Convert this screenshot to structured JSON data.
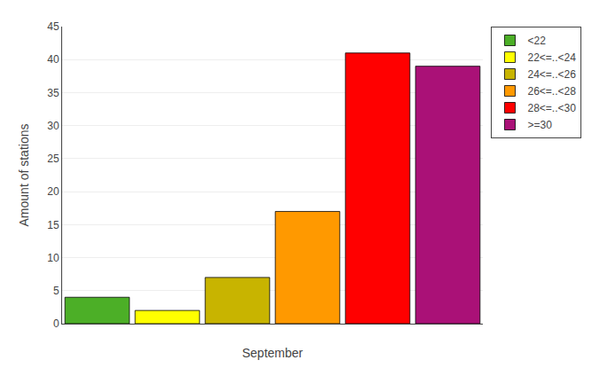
{
  "chart_data": {
    "type": "bar",
    "categories": [
      "<22",
      "22<=..<24",
      "24<=..<26",
      "26<=..<28",
      "28<=..<30",
      ">=30"
    ],
    "values": [
      4,
      2,
      7,
      17,
      41,
      39
    ],
    "colors": [
      "#4caf27",
      "#ffff00",
      "#c8b400",
      "#ff9900",
      "#ff0000",
      "#aa1177"
    ],
    "xlabel": "September",
    "ylabel": "Amount of stations",
    "ylim": [
      0,
      45
    ],
    "yticks": [
      0,
      5,
      10,
      15,
      20,
      25,
      30,
      35,
      40,
      45
    ],
    "grid": true,
    "legend": "upper right",
    "tick_labels": "y"
  }
}
